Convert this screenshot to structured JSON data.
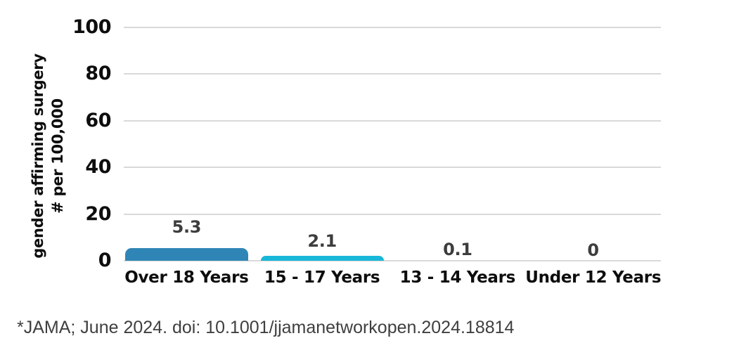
{
  "chart_data": {
    "type": "bar",
    "categories": [
      "Over 18 Years",
      "15 - 17 Years",
      "13 - 14 Years",
      "Under 12 Years"
    ],
    "values": [
      5.3,
      2.1,
      0.1,
      0
    ],
    "value_labels": [
      "5.3",
      "2.1",
      "0.1",
      "0"
    ],
    "ylabel_lines": [
      "gender affirming surgery",
      "# per 100,000"
    ],
    "yticks": [
      0,
      20,
      40,
      60,
      80,
      100
    ],
    "ytick_labels": [
      "0",
      "20",
      "40",
      "60",
      "80",
      "100"
    ],
    "ylim": [
      0,
      100
    ],
    "grid": true,
    "legend": "none",
    "bar_colors": [
      "#2f86b6",
      "#18b7d8",
      "#18b7d8",
      "#18b7d8"
    ]
  },
  "colors": {
    "bar_primary": "#2f86b6",
    "bar_secondary": "#18b7d8",
    "gridline": "#d9d9d9",
    "axis_text": "#0d0d0d",
    "value_label_text": "#3d3d3d",
    "footer_text": "#3f3f3f",
    "background": "#ffffff"
  },
  "footer": {
    "source_note": "*JAMA; June 2024. doi: 10.1001/jjamanetworkopen.2024.18814"
  }
}
